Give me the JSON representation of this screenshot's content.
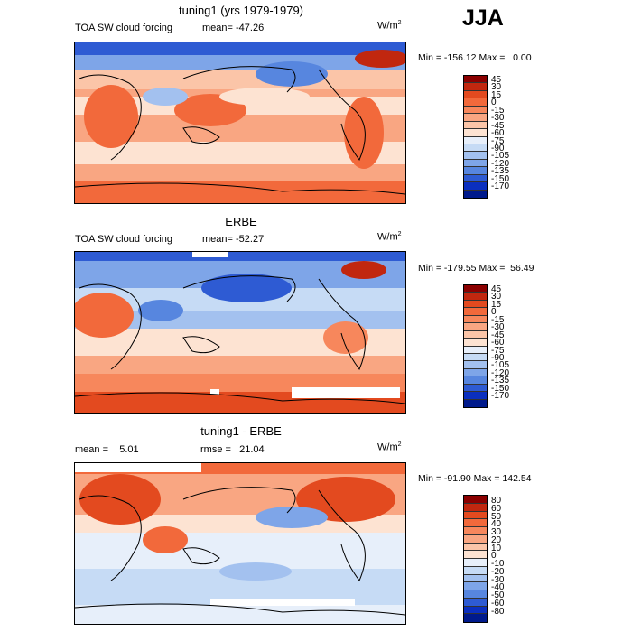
{
  "season": "JJA",
  "panels": [
    {
      "title": "tuning1 (yrs 1979-1979)",
      "left_label": "TOA SW cloud forcing",
      "mean_label": "mean=",
      "mean_value": "-47.26",
      "units_base": "W/m",
      "units_exp": "2",
      "min_label": "Min =",
      "min_value": "-156.12",
      "max_label": "Max =",
      "max_value": "0.00",
      "colorbar_labels": [
        "45",
        "30",
        "15",
        "0",
        "-15",
        "-30",
        "-45",
        "-60",
        "-75",
        "-90",
        "-105",
        "-120",
        "-135",
        "-150",
        "-170"
      ],
      "colorbar_colors": [
        "#8b0000",
        "#c1270f",
        "#e34a1f",
        "#f2693b",
        "#f7875c",
        "#f9a682",
        "#fbc5a8",
        "#fde3d2",
        "#e7effa",
        "#c6dbf5",
        "#a3c1ef",
        "#7ea5e8",
        "#5786df",
        "#2e5bd3",
        "#0b2fbf",
        "#001a8c"
      ]
    },
    {
      "title": "ERBE",
      "left_label": "TOA SW cloud forcing",
      "mean_label": "mean=",
      "mean_value": "-52.27",
      "units_base": "W/m",
      "units_exp": "2",
      "min_label": "Min =",
      "min_value": "-179.55",
      "max_label": "Max =",
      "max_value": "56.49",
      "colorbar_labels": [
        "45",
        "30",
        "15",
        "0",
        "-15",
        "-30",
        "-45",
        "-60",
        "-75",
        "-90",
        "-105",
        "-120",
        "-135",
        "-150",
        "-170"
      ],
      "colorbar_colors": [
        "#8b0000",
        "#c1270f",
        "#e34a1f",
        "#f2693b",
        "#f7875c",
        "#f9a682",
        "#fbc5a8",
        "#fde3d2",
        "#e7effa",
        "#c6dbf5",
        "#a3c1ef",
        "#7ea5e8",
        "#5786df",
        "#2e5bd3",
        "#0b2fbf",
        "#001a8c"
      ]
    },
    {
      "title": "tuning1 - ERBE",
      "left_label": "mean =",
      "left_value": "5.01",
      "mean_label": "rmse =",
      "mean_value": "21.04",
      "units_base": "W/m",
      "units_exp": "2",
      "min_label": "Min =",
      "min_value": "-91.90",
      "max_label": "Max =",
      "max_value": "142.54",
      "colorbar_labels": [
        "80",
        "60",
        "50",
        "40",
        "30",
        "20",
        "10",
        "0",
        "-10",
        "-20",
        "-30",
        "-40",
        "-50",
        "-60",
        "-80"
      ],
      "colorbar_colors": [
        "#8b0000",
        "#c1270f",
        "#e34a1f",
        "#f2693b",
        "#f7875c",
        "#f9a682",
        "#fbc5a8",
        "#fde3d2",
        "#e7effa",
        "#c6dbf5",
        "#a3c1ef",
        "#7ea5e8",
        "#5786df",
        "#2e5bd3",
        "#0b2fbf",
        "#001a8c"
      ]
    }
  ]
}
